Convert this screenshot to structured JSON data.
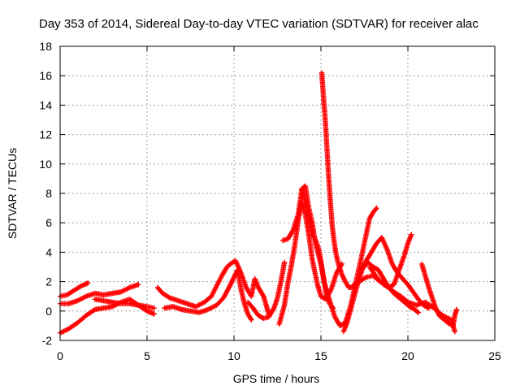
{
  "chart_data": {
    "type": "scatter",
    "title": "Day 353 of 2014, Sidereal Day-to-day VTEC variation (SDTVAR) for receiver alac",
    "xlabel": "GPS time / hours",
    "ylabel": "SDTVAR / TECUs",
    "xlim": [
      0,
      25
    ],
    "ylim": [
      -2,
      18
    ],
    "xticks": [
      0,
      5,
      10,
      15,
      20,
      25
    ],
    "yticks": [
      -2,
      0,
      2,
      4,
      6,
      8,
      10,
      12,
      14,
      16,
      18
    ],
    "grid": true,
    "marker": "+",
    "colors": {
      "series": "#ff0000",
      "grid": "#a0a0a0",
      "axis": "#000000"
    },
    "series": [
      {
        "name": "SDTVAR",
        "segments": [
          [
            [
              0.0,
              1.0
            ],
            [
              0.4,
              1.1
            ],
            [
              0.8,
              1.4
            ],
            [
              1.2,
              1.7
            ],
            [
              1.6,
              1.9
            ]
          ],
          [
            [
              0.0,
              0.5
            ],
            [
              0.5,
              0.5
            ],
            [
              1.0,
              0.7
            ],
            [
              1.5,
              1.0
            ],
            [
              2.0,
              1.2
            ],
            [
              2.5,
              1.1
            ],
            [
              3.0,
              1.2
            ],
            [
              3.5,
              1.3
            ],
            [
              4.0,
              1.6
            ],
            [
              4.5,
              1.8
            ]
          ],
          [
            [
              0.0,
              -1.5
            ],
            [
              0.5,
              -1.2
            ],
            [
              1.0,
              -0.8
            ],
            [
              1.5,
              -0.3
            ],
            [
              2.0,
              0.1
            ],
            [
              2.5,
              0.2
            ],
            [
              3.0,
              0.3
            ],
            [
              3.5,
              0.6
            ],
            [
              4.0,
              0.8
            ],
            [
              4.5,
              0.4
            ],
            [
              5.0,
              0.0
            ],
            [
              5.4,
              -0.2
            ]
          ],
          [
            [
              2.0,
              0.8
            ],
            [
              2.5,
              0.7
            ],
            [
              3.0,
              0.6
            ],
            [
              3.5,
              0.5
            ],
            [
              4.0,
              0.5
            ],
            [
              4.5,
              0.4
            ],
            [
              5.0,
              0.3
            ],
            [
              5.4,
              0.2
            ]
          ],
          [
            [
              5.6,
              1.6
            ],
            [
              5.9,
              1.2
            ],
            [
              6.3,
              0.9
            ],
            [
              6.8,
              0.7
            ],
            [
              7.3,
              0.5
            ],
            [
              7.8,
              0.3
            ],
            [
              8.3,
              0.6
            ],
            [
              8.7,
              1.0
            ],
            [
              9.0,
              1.7
            ],
            [
              9.3,
              2.4
            ],
            [
              9.6,
              3.0
            ],
            [
              9.9,
              3.3
            ],
            [
              10.1,
              3.4
            ]
          ],
          [
            [
              6.0,
              0.2
            ],
            [
              6.5,
              0.3
            ],
            [
              7.0,
              0.1
            ],
            [
              7.5,
              0.0
            ],
            [
              8.0,
              -0.1
            ],
            [
              8.5,
              0.1
            ],
            [
              9.0,
              0.4
            ],
            [
              9.4,
              0.9
            ],
            [
              9.8,
              1.8
            ],
            [
              10.2,
              2.8
            ],
            [
              10.4,
              1.5
            ],
            [
              10.6,
              0.5
            ],
            [
              10.8,
              -0.2
            ],
            [
              11.0,
              -0.6
            ]
          ],
          [
            [
              10.1,
              3.4
            ],
            [
              10.4,
              2.6
            ],
            [
              10.7,
              1.6
            ],
            [
              11.0,
              1.0
            ],
            [
              11.2,
              2.2
            ],
            [
              11.4,
              1.6
            ],
            [
              11.7,
              1.0
            ],
            [
              11.9,
              0.2
            ],
            [
              12.0,
              -0.2
            ]
          ],
          [
            [
              10.8,
              0.6
            ],
            [
              11.1,
              0.2
            ],
            [
              11.4,
              -0.3
            ],
            [
              11.7,
              -0.5
            ],
            [
              12.0,
              -0.4
            ],
            [
              12.3,
              0.2
            ],
            [
              12.5,
              0.9
            ],
            [
              12.7,
              2.0
            ],
            [
              12.9,
              3.3
            ]
          ],
          [
            [
              12.6,
              -0.9
            ],
            [
              12.9,
              0.4
            ],
            [
              13.1,
              1.9
            ],
            [
              13.3,
              3.1
            ],
            [
              13.5,
              4.5
            ],
            [
              13.7,
              6.2
            ],
            [
              13.9,
              7.4
            ],
            [
              14.1,
              6.6
            ],
            [
              14.3,
              5.2
            ],
            [
              14.5,
              3.5
            ],
            [
              14.8,
              1.8
            ],
            [
              15.0,
              1.0
            ],
            [
              15.3,
              0.8
            ],
            [
              15.6,
              1.5
            ],
            [
              15.9,
              2.6
            ],
            [
              16.2,
              3.2
            ]
          ],
          [
            [
              12.8,
              4.8
            ],
            [
              13.1,
              4.9
            ],
            [
              13.4,
              5.5
            ],
            [
              13.7,
              6.6
            ],
            [
              13.9,
              8.3
            ],
            [
              14.1,
              7.4
            ],
            [
              14.3,
              6.3
            ],
            [
              14.5,
              5.2
            ],
            [
              14.7,
              4.8
            ],
            [
              14.9,
              4.1
            ],
            [
              15.1,
              2.6
            ],
            [
              15.3,
              1.2
            ],
            [
              15.5,
              0.5
            ],
            [
              15.7,
              0.2
            ]
          ],
          [
            [
              13.9,
              8.3
            ],
            [
              14.1,
              8.5
            ],
            [
              14.3,
              7.0
            ],
            [
              14.5,
              6.0
            ],
            [
              14.7,
              4.5
            ],
            [
              15.0,
              3.2
            ],
            [
              15.2,
              1.9
            ],
            [
              15.5,
              0.7
            ],
            [
              15.8,
              -0.4
            ],
            [
              16.1,
              -1.0
            ],
            [
              16.4,
              -0.8
            ],
            [
              16.7,
              0.3
            ],
            [
              17.0,
              1.9
            ],
            [
              17.3,
              3.5
            ],
            [
              17.6,
              5.2
            ],
            [
              17.8,
              6.3
            ],
            [
              18.0,
              6.7
            ],
            [
              18.2,
              7.0
            ]
          ],
          [
            [
              15.05,
              16.2
            ],
            [
              15.15,
              14.5
            ],
            [
              15.25,
              13.0
            ],
            [
              15.35,
              11.0
            ],
            [
              15.45,
              9.0
            ],
            [
              15.55,
              7.3
            ],
            [
              15.65,
              5.8
            ],
            [
              15.75,
              4.8
            ],
            [
              15.85,
              4.0
            ],
            [
              16.0,
              3.2
            ],
            [
              16.2,
              2.5
            ],
            [
              16.4,
              2.0
            ],
            [
              16.6,
              1.6
            ],
            [
              16.8,
              1.6
            ]
          ],
          [
            [
              16.3,
              -1.4
            ],
            [
              16.5,
              -0.8
            ],
            [
              16.8,
              0.5
            ],
            [
              17.1,
              1.8
            ],
            [
              17.4,
              2.9
            ],
            [
              17.7,
              3.3
            ],
            [
              18.0,
              3.0
            ],
            [
              18.3,
              2.8
            ],
            [
              18.6,
              2.2
            ],
            [
              18.9,
              1.6
            ],
            [
              19.2,
              1.2
            ],
            [
              19.5,
              0.9
            ],
            [
              19.8,
              0.6
            ],
            [
              20.1,
              0.3
            ],
            [
              20.4,
              0.1
            ],
            [
              20.6,
              -0.1
            ]
          ],
          [
            [
              17.3,
              2.8
            ],
            [
              17.6,
              3.4
            ],
            [
              17.9,
              4.0
            ],
            [
              18.2,
              4.6
            ],
            [
              18.5,
              5.0
            ],
            [
              18.8,
              4.2
            ],
            [
              19.1,
              3.2
            ],
            [
              19.4,
              2.6
            ],
            [
              19.7,
              2.2
            ],
            [
              20.0,
              1.8
            ],
            [
              20.3,
              1.3
            ],
            [
              20.6,
              0.8
            ],
            [
              20.9,
              0.4
            ],
            [
              21.2,
              0.2
            ]
          ],
          [
            [
              17.8,
              3.0
            ],
            [
              18.2,
              2.3
            ],
            [
              18.6,
              1.8
            ],
            [
              18.9,
              1.6
            ],
            [
              19.2,
              1.8
            ],
            [
              19.5,
              2.8
            ],
            [
              19.8,
              3.8
            ],
            [
              20.0,
              4.6
            ],
            [
              20.2,
              5.2
            ]
          ],
          [
            [
              16.8,
              1.7
            ],
            [
              17.2,
              2.0
            ],
            [
              17.6,
              2.3
            ],
            [
              18.0,
              2.4
            ],
            [
              18.4,
              2.0
            ],
            [
              18.8,
              1.7
            ],
            [
              19.2,
              1.3
            ],
            [
              19.6,
              1.0
            ],
            [
              20.0,
              0.6
            ],
            [
              20.5,
              0.4
            ],
            [
              21.0,
              0.6
            ],
            [
              21.5,
              0.2
            ],
            [
              22.0,
              -0.3
            ],
            [
              22.5,
              -0.6
            ],
            [
              22.7,
              -1.4
            ]
          ],
          [
            [
              20.8,
              3.2
            ],
            [
              21.0,
              2.4
            ],
            [
              21.2,
              1.6
            ],
            [
              21.4,
              0.9
            ],
            [
              21.6,
              0.2
            ],
            [
              21.8,
              -0.3
            ],
            [
              22.0,
              -0.5
            ],
            [
              22.3,
              -0.8
            ],
            [
              22.6,
              -1.0
            ],
            [
              22.7,
              -0.3
            ],
            [
              22.8,
              0.1
            ]
          ]
        ]
      }
    ]
  }
}
